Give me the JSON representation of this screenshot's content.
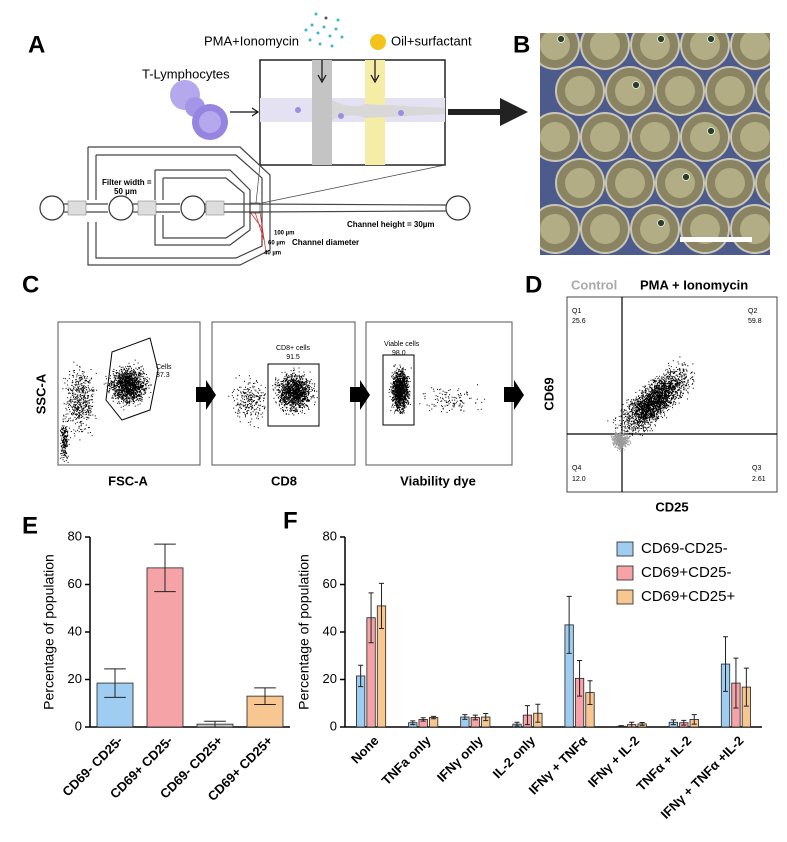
{
  "panel_labels": [
    "A",
    "B",
    "C",
    "D",
    "E",
    "F"
  ],
  "panel_a": {
    "reagent": "PMA+Ionomycin",
    "oil": "Oil+surfactant",
    "cells": "T-Lymphocytes",
    "filter_width": [
      "Filter width =",
      "50 µm"
    ],
    "diameters": [
      "100 µm",
      "60 µm",
      "40 µm"
    ],
    "diameter_label": "Channel diameter",
    "channel_height": "Channel height = 30µm"
  },
  "panel_c": {
    "y_label": "SSC-A",
    "plots": [
      {
        "x_label": "FSC-A",
        "gate": "Cells",
        "percent": "37.3"
      },
      {
        "x_label": "CD8",
        "gate": "CD8+ cells",
        "percent": "91.5"
      },
      {
        "x_label": "Viability dye",
        "gate": "Viable cells",
        "percent": "98.0"
      }
    ]
  },
  "panel_d": {
    "control": "Control",
    "treated": "PMA + Ionomycin",
    "y_label": "CD69",
    "x_label": "CD25",
    "quadrants": [
      {
        "name": "Q1",
        "percent": "25.6"
      },
      {
        "name": "Q2",
        "percent": "59.8"
      },
      {
        "name": "Q4",
        "percent": "12.0"
      },
      {
        "name": "Q3",
        "percent": "2.61"
      }
    ]
  },
  "chart_data": [
    {
      "type": "bar",
      "y_label": "Percentage of population",
      "categories": [
        "CD69- CD25-",
        "CD69+ CD25-",
        "CD69- CD25+",
        "CD69+ CD25+"
      ],
      "values": [
        18.5,
        67,
        1.2,
        13
      ],
      "errors": [
        6,
        10,
        1.2,
        3.5
      ],
      "colors": [
        "#9fcdf2",
        "#f5a3a6",
        "#c8c8c8",
        "#f8c690"
      ],
      "ylim": [
        0,
        80
      ],
      "yticks": [
        0,
        20,
        40,
        60,
        80
      ]
    },
    {
      "type": "grouped-bar",
      "y_label": "Percentage of population",
      "categories": [
        "None",
        "TNFa only",
        "IFNγ only",
        "IL-2 only",
        "IFNγ + TNFα",
        "IFNγ + IL-2",
        "TNFα + IL-2",
        "IFNγ + TNFα +IL-2"
      ],
      "series": [
        {
          "name": "CD69-CD25-",
          "color": "#9fcdf2",
          "values": [
            21.5,
            1.8,
            4.2,
            1.2,
            43,
            0.3,
            2,
            26.5
          ],
          "errors": [
            4.5,
            0.8,
            1,
            0.8,
            12,
            0.3,
            1,
            11.5
          ]
        },
        {
          "name": "CD69+CD25-",
          "color": "#f5a3a6",
          "values": [
            46,
            3.2,
            4,
            5,
            20.5,
            1,
            1.8,
            18.5
          ],
          "errors": [
            10.5,
            0.7,
            1,
            4,
            7.5,
            1,
            1,
            10.5
          ]
        },
        {
          "name": "CD69+CD25+",
          "color": "#f8c690",
          "values": [
            51,
            4,
            4.2,
            5.8,
            14.5,
            1.3,
            3.2,
            16.8
          ],
          "errors": [
            9.5,
            0.5,
            1.5,
            3.8,
            5,
            0.6,
            2,
            8
          ]
        }
      ],
      "ylim": [
        0,
        80
      ],
      "yticks": [
        0,
        20,
        40,
        60,
        80
      ],
      "legend": "top-right"
    }
  ]
}
